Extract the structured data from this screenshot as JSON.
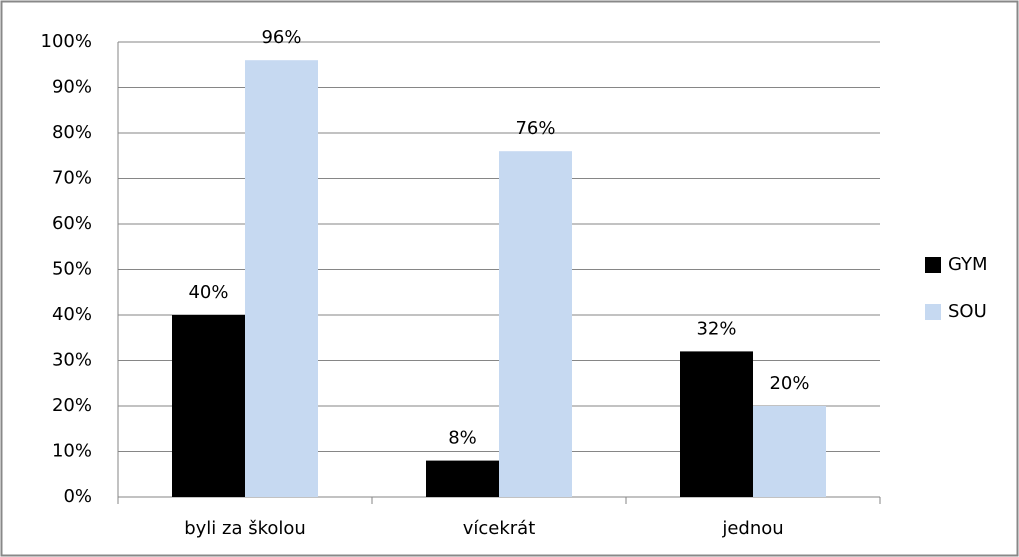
{
  "chart_data": {
    "type": "bar",
    "categories": [
      "byli za školou",
      "vícekrát",
      "jednou"
    ],
    "series": [
      {
        "name": "GYM",
        "color": "#000000",
        "values": [
          40,
          8,
          32
        ],
        "value_labels": [
          "40%",
          "8%",
          "32%"
        ]
      },
      {
        "name": "SOU",
        "color": "#c6d9f1",
        "values": [
          96,
          76,
          20
        ],
        "value_labels": [
          "96%",
          "76%",
          "20%"
        ]
      }
    ],
    "ylim": [
      0,
      100
    ],
    "yticks": [
      {
        "value": 0,
        "label": "0%"
      },
      {
        "value": 10,
        "label": "10%"
      },
      {
        "value": 20,
        "label": "20%"
      },
      {
        "value": 30,
        "label": "30%"
      },
      {
        "value": 40,
        "label": "40%"
      },
      {
        "value": 50,
        "label": "50%"
      },
      {
        "value": 60,
        "label": "60%"
      },
      {
        "value": 70,
        "label": "70%"
      },
      {
        "value": 80,
        "label": "80%"
      },
      {
        "value": 90,
        "label": "90%"
      },
      {
        "value": 100,
        "label": "100%"
      }
    ],
    "grid": true,
    "legend": "right"
  }
}
